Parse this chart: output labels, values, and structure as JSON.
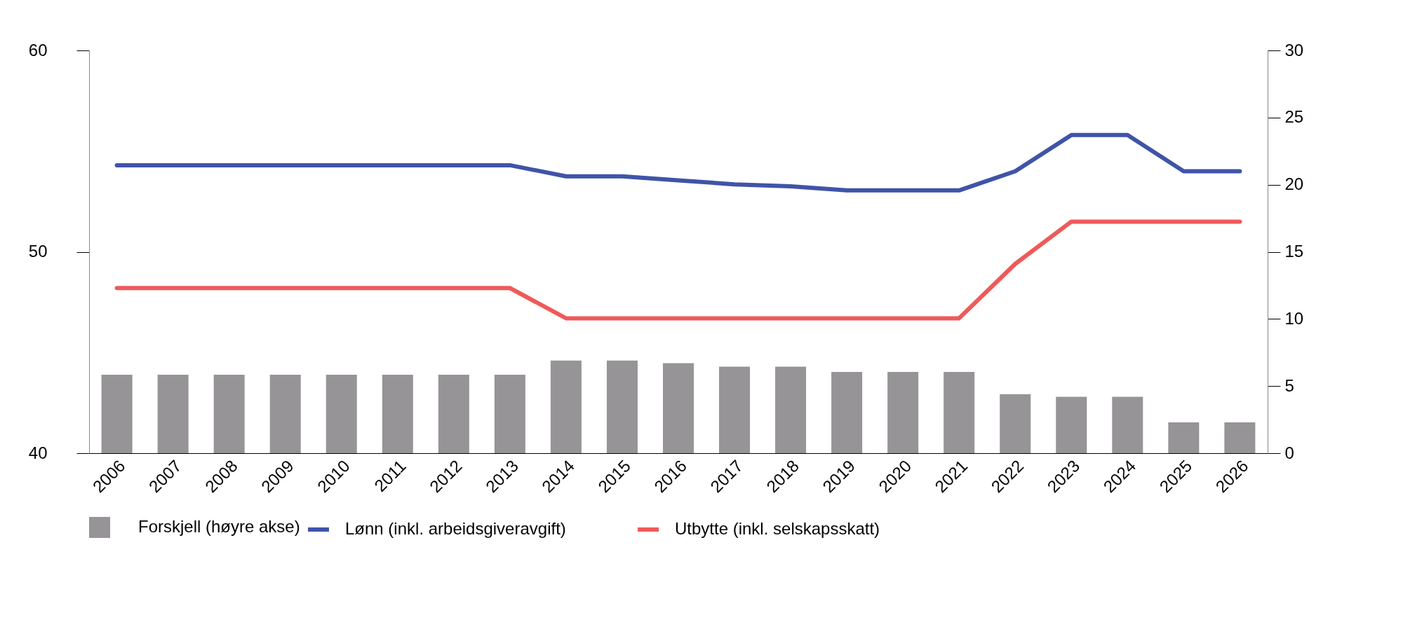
{
  "chart_data": {
    "type": "bar",
    "categories": [
      "2006",
      "2007",
      "2008",
      "2009",
      "2010",
      "2011",
      "2012",
      "2013",
      "2014",
      "2015",
      "2016",
      "2017",
      "2018",
      "2019",
      "2020",
      "2021",
      "2022",
      "2023",
      "2024",
      "2025",
      "2026"
    ],
    "series": [
      {
        "name": "Forskjell (høyre akse)",
        "axis": "y2",
        "color": "#969496",
        "values": [
          5.85,
          5.85,
          5.85,
          5.85,
          5.85,
          5.85,
          5.85,
          5.85,
          6.9,
          6.9,
          6.7,
          6.45,
          6.45,
          6.05,
          6.05,
          6.05,
          4.4,
          4.2,
          4.2,
          2.3,
          2.3
        ]
      },
      {
        "name": "Lønn (inkl. arbeidsgiveravgift)",
        "type": "line",
        "color": "#3f54a8",
        "values": [
          54.3,
          54.3,
          54.3,
          54.3,
          54.3,
          54.3,
          54.3,
          54.3,
          53.75,
          53.75,
          53.55,
          53.35,
          53.25,
          53.05,
          53.05,
          53.05,
          54.0,
          55.8,
          55.8,
          54.0,
          54.0
        ]
      },
      {
        "name": "Utbytte (inkl. selskapsskatt)",
        "type": "line",
        "color": "#ef5a5a",
        "values": [
          48.2,
          48.2,
          48.2,
          48.2,
          48.2,
          48.2,
          48.2,
          48.2,
          46.7,
          46.7,
          46.7,
          46.7,
          46.7,
          46.7,
          46.7,
          46.7,
          49.4,
          51.5,
          51.5,
          51.5,
          51.5
        ]
      }
    ],
    "ylim": [
      40,
      60
    ],
    "yticks": [
      40,
      50,
      60
    ],
    "y2lim": [
      0,
      30
    ],
    "y2ticks": [
      0,
      5,
      10,
      15,
      20,
      25,
      30
    ],
    "legend": "bottom",
    "grid": false
  }
}
